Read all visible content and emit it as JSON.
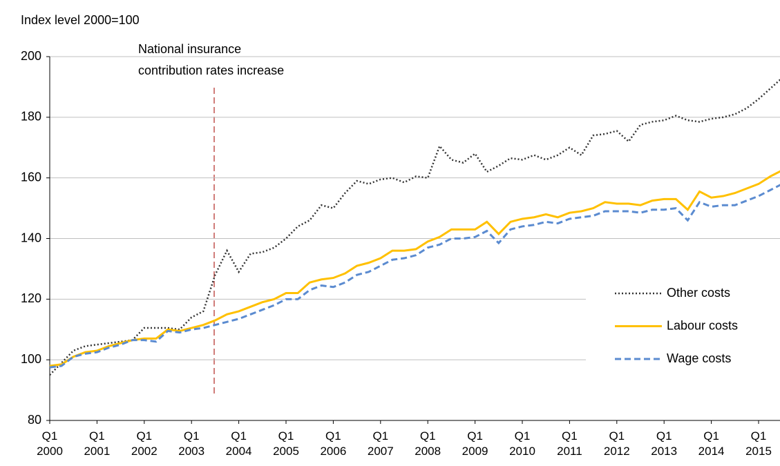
{
  "chart_data": {
    "type": "line",
    "y_axis_label": "Index level 2000=100",
    "annotation": [
      "National insurance",
      "contribution rates increase"
    ],
    "categories": [
      "Q1 2000",
      null,
      null,
      null,
      "Q1 2001",
      null,
      null,
      null,
      "Q1 2002",
      null,
      null,
      null,
      "Q1 2003",
      null,
      null,
      null,
      "Q1 2004",
      null,
      null,
      null,
      "Q1 2005",
      null,
      null,
      null,
      "Q1 2006",
      null,
      null,
      null,
      "Q1 2007",
      null,
      null,
      null,
      "Q1 2008",
      null,
      null,
      null,
      "Q1 2009",
      null,
      null,
      null,
      "Q1 2010",
      null,
      null,
      null,
      "Q1 2011",
      null,
      null,
      null,
      "Q1 2012",
      null,
      null,
      null,
      "Q1 2013",
      null,
      null,
      null,
      "Q1 2014",
      null,
      null,
      null,
      "Q1 2015",
      null,
      null
    ],
    "series": [
      {
        "name": "Other costs",
        "color": "#333333",
        "dash": "dotted",
        "values": [
          95,
          99,
          103,
          104.5,
          105,
          105.5,
          106,
          106.5,
          110.5,
          110.5,
          110.5,
          110,
          114,
          116,
          128,
          136,
          129,
          135,
          135.5,
          137,
          140,
          144,
          146,
          151,
          150,
          155,
          159,
          158,
          159.5,
          160,
          158.5,
          160.5,
          160,
          170.5,
          166,
          165,
          168,
          162,
          164,
          166.5,
          166,
          167.5,
          166,
          167.5,
          170,
          167.5,
          174,
          174.5,
          175.5,
          172,
          177.5,
          178.5,
          179,
          180.5,
          179,
          178.5,
          179.5,
          180,
          181,
          183,
          186,
          189.5,
          193
        ]
      },
      {
        "name": "Labour costs",
        "color": "#ffc000",
        "dash": "solid",
        "values": [
          98,
          98.5,
          101,
          102.5,
          103,
          104.5,
          105.5,
          106.5,
          107,
          107,
          110,
          109.5,
          110.5,
          111.5,
          113,
          115,
          116,
          117.5,
          119,
          120,
          122,
          122,
          125.5,
          126.5,
          127,
          128.5,
          131,
          132,
          133.5,
          136,
          136,
          136.5,
          139,
          140.5,
          143,
          143,
          143,
          145.5,
          141.5,
          145.5,
          146.5,
          147,
          148,
          147,
          148.5,
          149,
          150,
          152,
          151.5,
          151.5,
          151,
          152.5,
          153,
          153,
          149.5,
          155.5,
          153.5,
          154,
          155,
          156.5,
          158,
          160.5,
          162.5
        ]
      },
      {
        "name": "Wage costs",
        "color": "#5b8bd0",
        "dash": "dashed",
        "values": [
          97.5,
          98,
          101,
          102,
          102.5,
          104,
          105,
          106.5,
          106.5,
          106,
          109.5,
          109,
          110,
          110.5,
          111.5,
          112.5,
          113.5,
          115,
          116.5,
          118,
          120,
          120,
          123,
          124.5,
          124,
          125.5,
          128,
          129,
          131,
          133,
          133.5,
          134.5,
          137,
          138,
          140,
          140,
          140.5,
          142.5,
          138.5,
          143,
          144,
          144.5,
          145.5,
          145,
          146.5,
          147,
          147.5,
          149,
          149,
          149,
          148.5,
          149.5,
          149.5,
          150,
          146,
          152,
          150.5,
          151,
          151,
          152.5,
          154,
          156,
          158
        ]
      }
    ],
    "ylim": [
      80,
      200
    ],
    "yticks": [
      80,
      100,
      120,
      140,
      160,
      180,
      200
    ],
    "grid": true
  }
}
